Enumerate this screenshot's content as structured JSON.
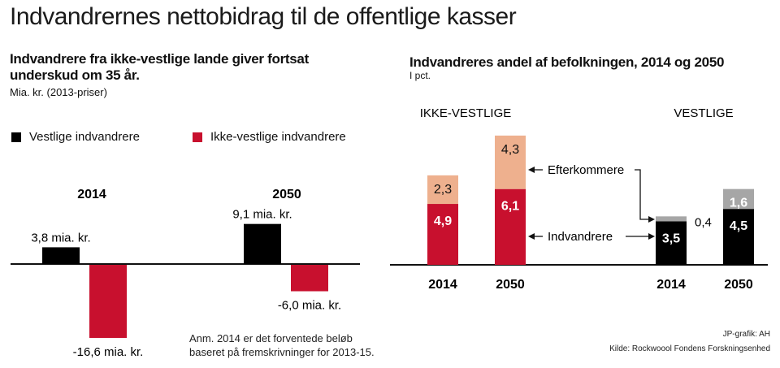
{
  "header": {
    "title": "Indvandrernes nettobidrag til de offentlige kasser"
  },
  "colors": {
    "vestlige": "#000000",
    "ikke_vestlige": "#c8102e",
    "efterkommere_ikke_vestlige": "#eeb08e",
    "efterkommere_vestlige": "#a6a6a6"
  },
  "left": {
    "title_line1": "Indvandrere fra ikke-vestlige lande giver fortsat",
    "title_line2": "underskud om 35 år.",
    "unit": "Mia. kr. (2013-priser)",
    "legend": [
      {
        "label": "Vestlige indvandrere",
        "color": "#000000"
      },
      {
        "label": "Ikke-vestlige indvandrere",
        "color": "#c8102e"
      }
    ],
    "note_line1": "Anm. 2014 er det forventede beløb",
    "note_line2": "baseret på fremskrivninger for 2013-15."
  },
  "right": {
    "title": "Indvandreres andel af befolkningen, 2014 og 2050",
    "unit": "I pct.",
    "group_labels": [
      "IKKE-VESTLIGE",
      "VESTLIGE"
    ],
    "annotation_efterkommere": "Efterkommere",
    "annotation_indvandrere": "Indvandrere"
  },
  "footer": {
    "credit": "JP-grafik: AH",
    "source": "Kilde: Rockwoool Fondens Forskningsenhed"
  },
  "chart_data": [
    {
      "type": "bar",
      "title": "Indvandrere fra ikke-vestlige lande giver fortsat underskud om 35 år.",
      "subtitle": "Mia. kr. (2013-priser)",
      "categories": [
        "2014",
        "2050"
      ],
      "series": [
        {
          "name": "Vestlige indvandrere",
          "values": [
            3.8,
            9.1
          ],
          "labels": [
            "3,8 mia. kr.",
            "9,1 mia. kr."
          ]
        },
        {
          "name": "Ikke-vestlige indvandrere",
          "values": [
            -16.6,
            -6.0
          ],
          "labels": [
            "-16,6 mia. kr.",
            "-6,0 mia. kr."
          ]
        }
      ],
      "legend": "top-left",
      "grid": false,
      "ylim": [
        -17,
        10
      ]
    },
    {
      "type": "bar",
      "stacked": true,
      "title": "Indvandreres andel af befolkningen, 2014 og 2050",
      "subtitle": "I pct.",
      "groups": [
        {
          "name": "IKKE-VESTLIGE",
          "categories": [
            "2014",
            "2050"
          ],
          "series": [
            {
              "name": "Indvandrere",
              "values": [
                4.9,
                6.1
              ],
              "labels": [
                "4,9",
                "6,1"
              ]
            },
            {
              "name": "Efterkommere",
              "values": [
                2.3,
                4.3
              ],
              "labels": [
                "2,3",
                "4,3"
              ]
            }
          ]
        },
        {
          "name": "VESTLIGE",
          "categories": [
            "2014",
            "2050"
          ],
          "series": [
            {
              "name": "Indvandrere",
              "values": [
                3.5,
                4.5
              ],
              "labels": [
                "3,5",
                "4,5"
              ]
            },
            {
              "name": "Efterkommere",
              "values": [
                0.4,
                1.6
              ],
              "labels": [
                "0,4",
                "1,6"
              ]
            }
          ]
        }
      ],
      "grid": false,
      "ylim": [
        0,
        11
      ]
    }
  ]
}
